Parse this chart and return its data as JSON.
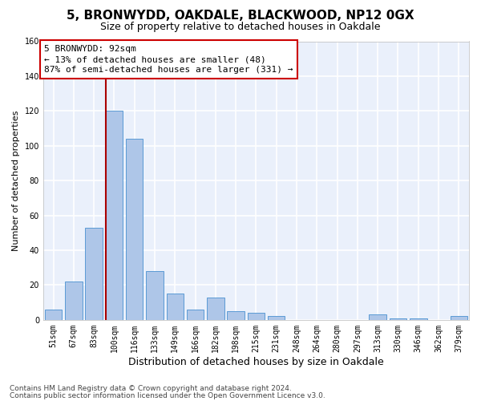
{
  "title1": "5, BRONWYDD, OAKDALE, BLACKWOOD, NP12 0GX",
  "title2": "Size of property relative to detached houses in Oakdale",
  "xlabel": "Distribution of detached houses by size in Oakdale",
  "ylabel": "Number of detached properties",
  "bar_categories": [
    "51sqm",
    "67sqm",
    "83sqm",
    "100sqm",
    "116sqm",
    "133sqm",
    "149sqm",
    "166sqm",
    "182sqm",
    "198sqm",
    "215sqm",
    "231sqm",
    "248sqm",
    "264sqm",
    "280sqm",
    "297sqm",
    "313sqm",
    "330sqm",
    "346sqm",
    "362sqm",
    "379sqm"
  ],
  "bar_values": [
    6,
    22,
    53,
    120,
    104,
    28,
    15,
    6,
    13,
    5,
    4,
    2,
    0,
    0,
    0,
    0,
    3,
    1,
    1,
    0,
    2
  ],
  "bar_color": "#aec6e8",
  "bar_edge_color": "#5b9bd5",
  "ylim": [
    0,
    160
  ],
  "yticks": [
    0,
    20,
    40,
    60,
    80,
    100,
    120,
    140,
    160
  ],
  "annotation_title": "5 BRONWYDD: 92sqm",
  "annotation_line1": "← 13% of detached houses are smaller (48)",
  "annotation_line2": "87% of semi-detached houses are larger (331) →",
  "footer1": "Contains HM Land Registry data © Crown copyright and database right 2024.",
  "footer2": "Contains public sector information licensed under the Open Government Licence v3.0.",
  "bg_color": "#eaf0fb",
  "grid_color": "#ffffff",
  "title1_fontsize": 11,
  "title2_fontsize": 9,
  "xlabel_fontsize": 9,
  "ylabel_fontsize": 8,
  "tick_fontsize": 7,
  "annot_fontsize": 8,
  "footer_fontsize": 6.5,
  "property_sqm": 92,
  "red_line_bar_index": 3
}
